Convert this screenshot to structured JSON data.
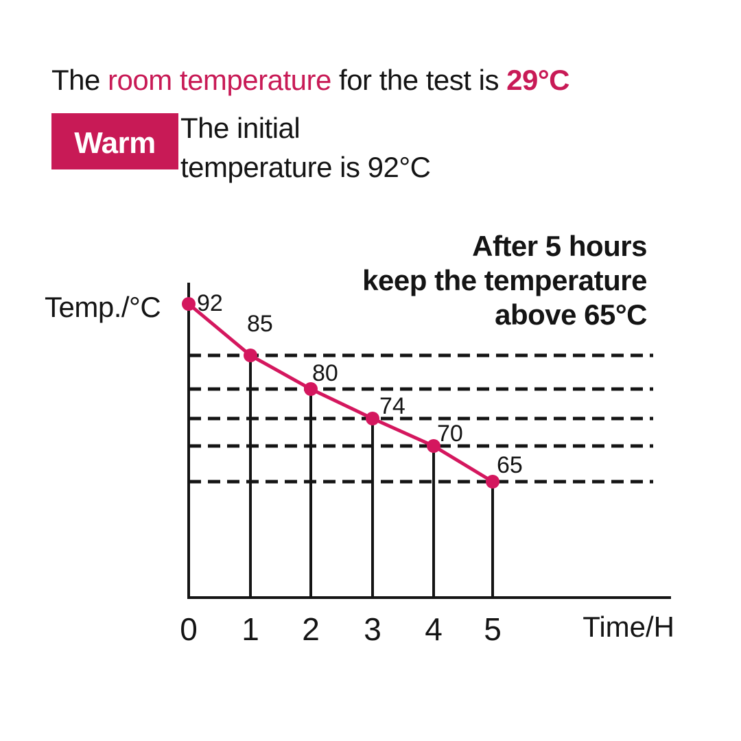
{
  "header": {
    "line1": {
      "prefix": "The ",
      "highlight": "room temperature",
      "middle": " for the test is ",
      "value": "29°C"
    },
    "badge_label": "Warm",
    "initial_line1": "The initial",
    "initial_line2": "temperature is 92°C"
  },
  "annotation": {
    "line1": "After 5 hours",
    "line2": "keep the temperature",
    "line3": "above 65°C"
  },
  "colors": {
    "accent": "#c81a56",
    "line": "#d4175e",
    "ink": "#141414"
  },
  "chart_data": {
    "type": "line",
    "x": [
      0,
      1,
      2,
      3,
      4,
      5
    ],
    "values": [
      92,
      85,
      80,
      74,
      70,
      65
    ],
    "point_labels": [
      "92",
      "85",
      "80",
      "74",
      "70",
      "65"
    ],
    "x_tick_labels": [
      "0",
      "1",
      "2",
      "3",
      "4",
      "5"
    ],
    "xlabel": "Time/H",
    "ylabel": "Temp./°C",
    "xlim": [
      0,
      5
    ],
    "ylim": [
      65,
      92
    ],
    "guide_values": [
      85,
      80,
      74,
      70,
      65
    ],
    "guide_style": "dashed",
    "grid": "horizontal-dashed",
    "legend": "none",
    "line_color": "#d4175e",
    "marker": "circle"
  }
}
